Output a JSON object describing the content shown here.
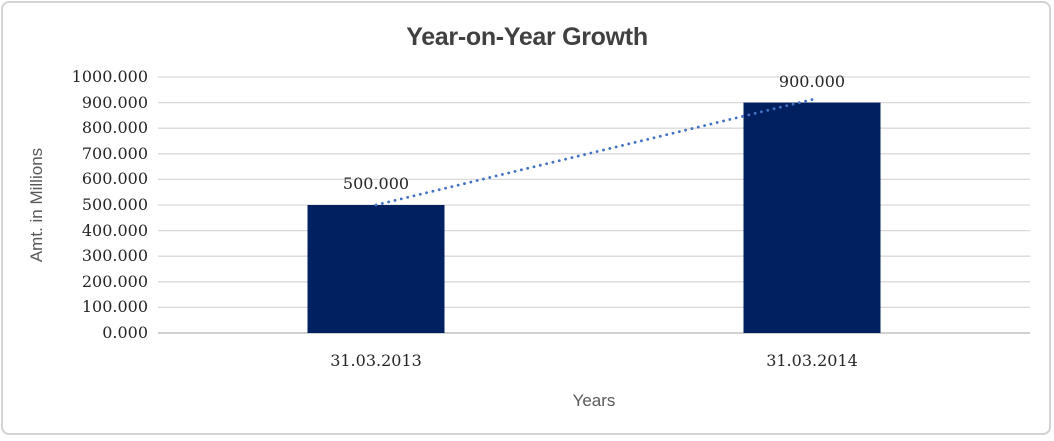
{
  "window": {
    "background": "#ffffff",
    "frame_border_color": "#d3d3d3"
  },
  "chart_data": {
    "type": "bar",
    "title": "Year-on-Year Growth",
    "xlabel": "Years",
    "ylabel": "Amt. in Millions",
    "categories": [
      "31.03.2013",
      "31.03.2014"
    ],
    "values": [
      500,
      900
    ],
    "point_labels": [
      "500.000",
      "900.000"
    ],
    "ylim": [
      0,
      1000
    ],
    "ytick_step": 100,
    "ytick_labels": [
      "0.000",
      "100.000",
      "200.000",
      "300.000",
      "400.000",
      "500.000",
      "600.000",
      "700.000",
      "800.000",
      "900.000",
      "1000.000"
    ],
    "grid": true,
    "legend": false,
    "trendline": {
      "type": "linear",
      "style": "dotted",
      "endpoints_values": [
        500,
        900
      ],
      "color": "#4472C4"
    },
    "colors": {
      "bar": "#002060",
      "gridline": "#D9D9D9",
      "axis_line": "#C0C0C0",
      "title_text": "#404040",
      "tick_text": "#262626",
      "axis_title_text": "#595959",
      "trendline": "#4472C4"
    }
  }
}
